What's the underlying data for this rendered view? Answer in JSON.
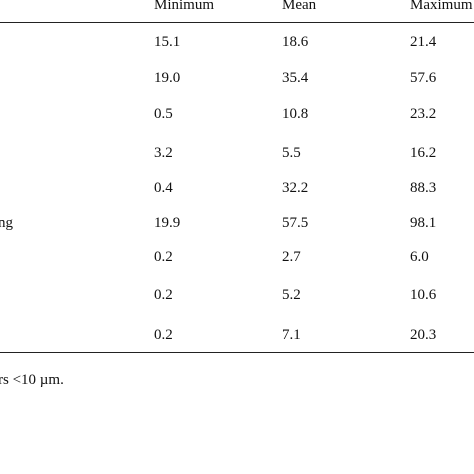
{
  "table": {
    "columns": [
      "Minimum",
      "Mean",
      "Maximum"
    ],
    "rows": [
      {
        "label": "",
        "values": [
          "15.1",
          "18.6",
          "21.4"
        ]
      },
      {
        "label": "",
        "values": [
          "19.0",
          "35.4",
          "57.6"
        ]
      },
      {
        "label": "",
        "values": [
          "0.5",
          "10.8",
          "23.2"
        ]
      },
      {
        "label": "",
        "values": [
          "3.2",
          "5.5",
          "16.2"
        ]
      },
      {
        "label": "",
        "values": [
          "0.4",
          "32.2",
          "88.3"
        ]
      },
      {
        "label": "ng",
        "values": [
          "19.9",
          "57.5",
          "98.1"
        ]
      },
      {
        "label": "",
        "values": [
          "0.2",
          "2.7",
          "6.0"
        ]
      },
      {
        "label": "",
        "values": [
          "0.2",
          "5.2",
          "10.6"
        ]
      },
      {
        "label": "",
        "values": [
          "0.2",
          "7.1",
          "20.3"
        ]
      }
    ]
  },
  "footnote": "rs <10 µm."
}
